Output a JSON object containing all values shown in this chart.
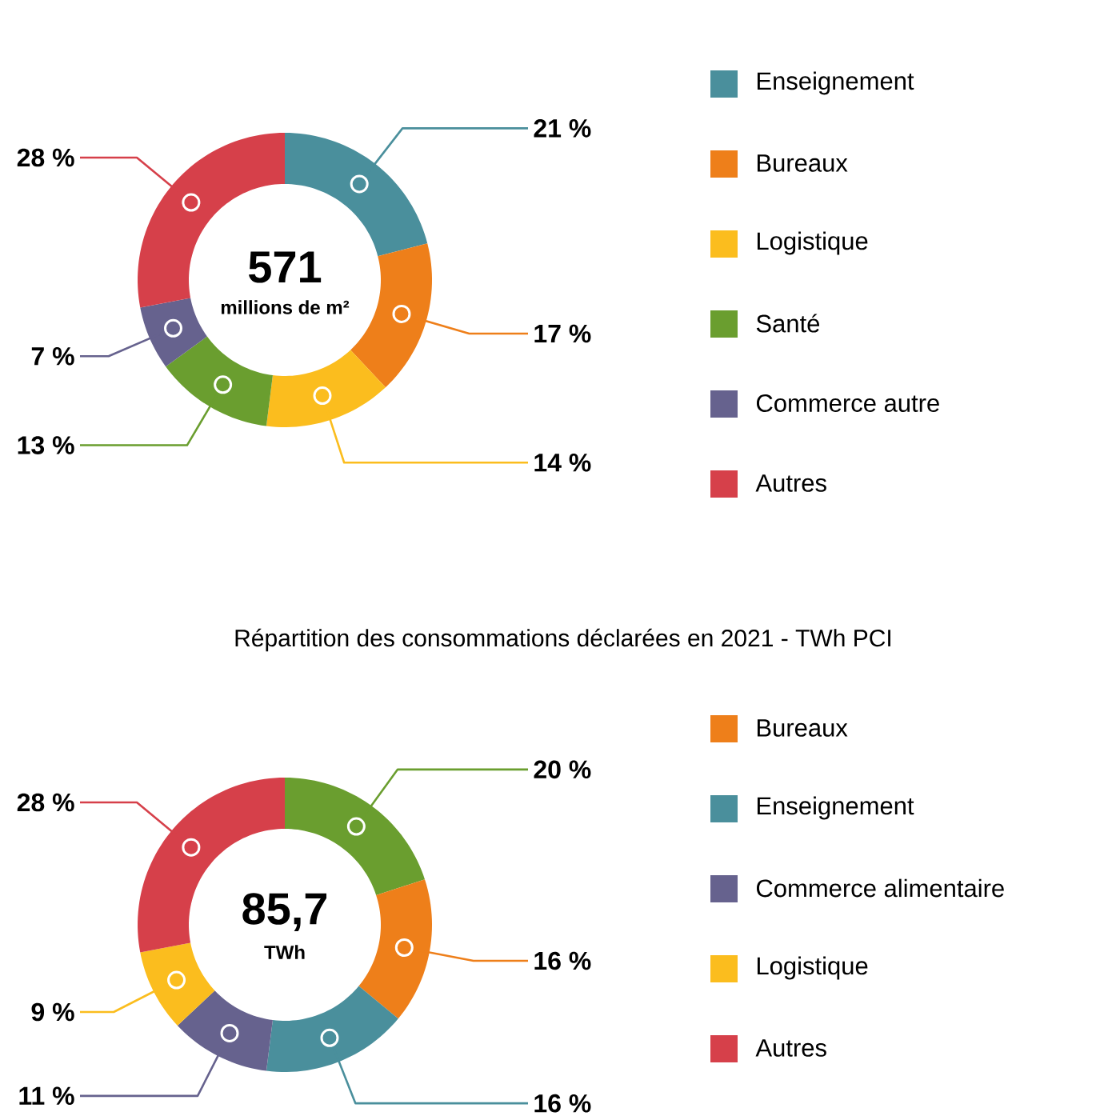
{
  "chart_data": [
    {
      "type": "donut",
      "categories": [
        "Enseignement",
        "Bureaux",
        "Logistique",
        "Santé",
        "Commerce autre",
        "Autres"
      ],
      "values": [
        21,
        17,
        14,
        13,
        7,
        28
      ],
      "colors": [
        "#4a8f9c",
        "#ee7f1a",
        "#fbbd1e",
        "#6a9e2f",
        "#66628e",
        "#d6404a"
      ],
      "value_labels": [
        "21 %",
        "17 %",
        "14 %",
        "13 %",
        "7 %",
        "28 %"
      ],
      "annotations": [
        "571",
        "millions de m²"
      ],
      "legend": "right"
    },
    {
      "type": "donut",
      "title": "Répartition des consommations déclarées en 2021 - TWh PCI",
      "categories": [
        null,
        "Bureaux",
        "Enseignement",
        "Commerce alimentaire",
        "Logistique",
        "Autres"
      ],
      "values": [
        20,
        16,
        16,
        11,
        9,
        28
      ],
      "colors": [
        "#6a9e2f",
        "#ee7f1a",
        "#4a8f9c",
        "#66628e",
        "#fbbd1e",
        "#d6404a"
      ],
      "value_labels": [
        "20 %",
        "16 %",
        "16 %",
        "11 %",
        "9 %",
        "28 %"
      ],
      "annotations": [
        "85,7",
        "TWh"
      ],
      "legend": "right"
    }
  ]
}
